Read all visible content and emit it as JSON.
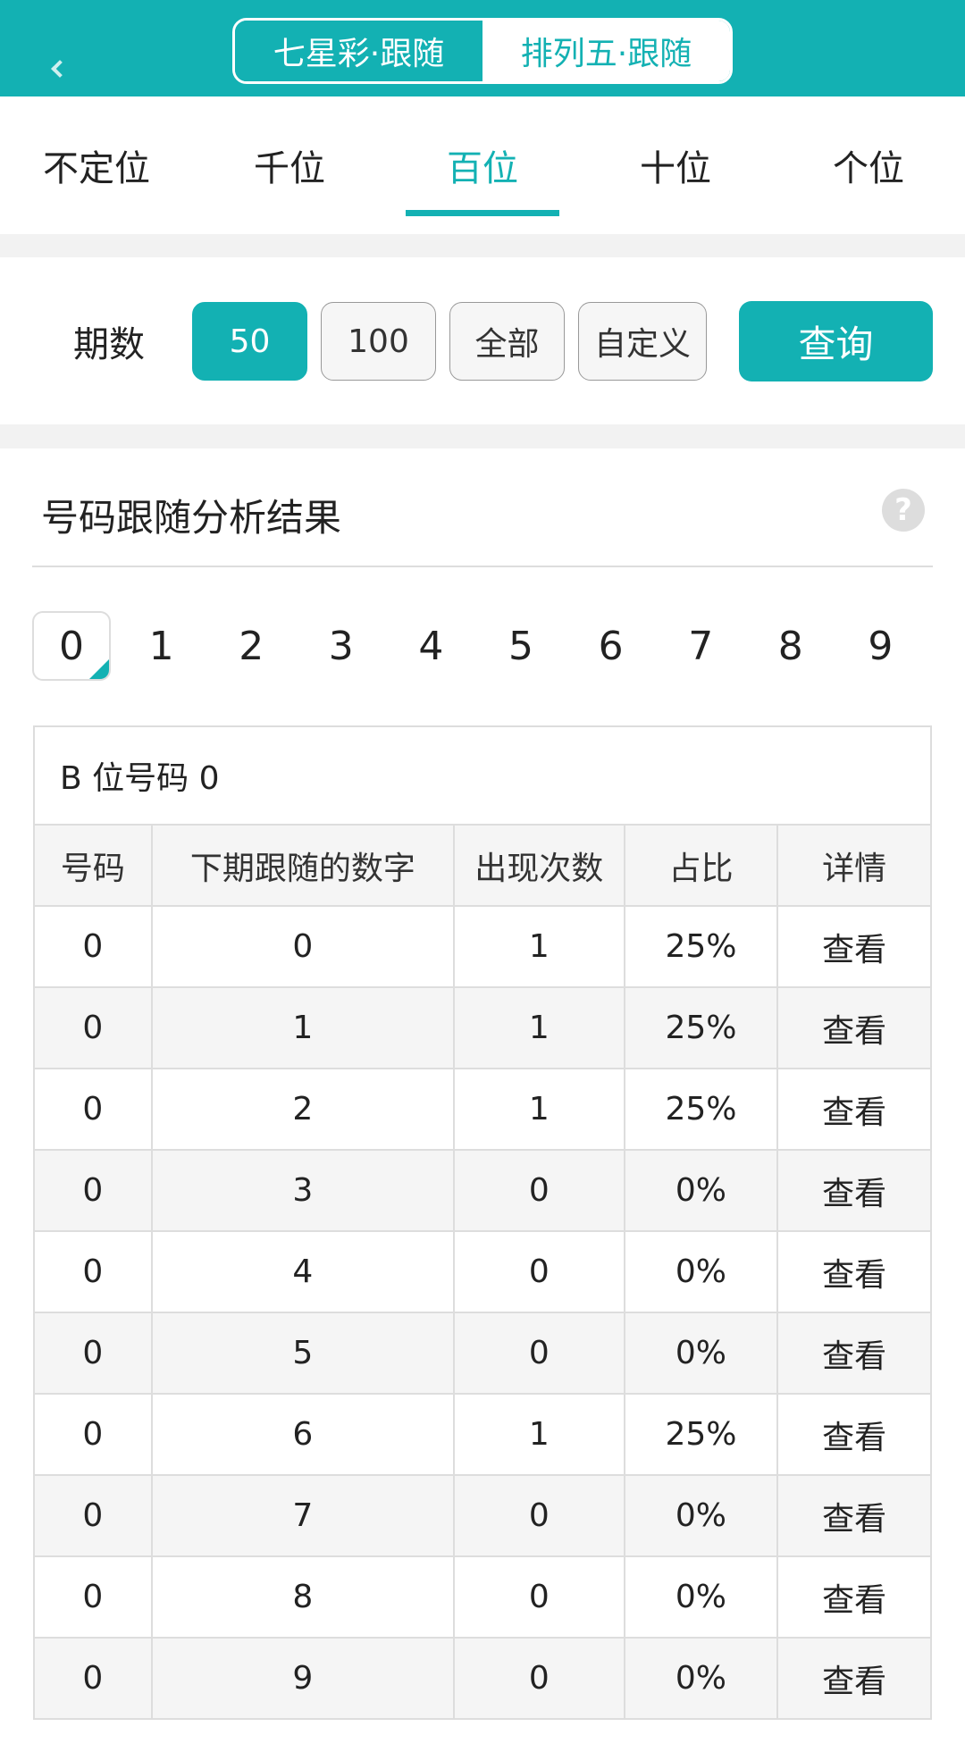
{
  "header": {
    "segments": [
      "七星彩·跟随",
      "排列五·跟随"
    ],
    "active_segment": 0,
    "accent": "#13b1b3"
  },
  "tabs": [
    "不定位",
    "千位",
    "百位",
    "十位",
    "个位"
  ],
  "active_tab": 2,
  "period": {
    "label": "期数",
    "options": [
      "50",
      "100",
      "全部",
      "自定义"
    ],
    "selected": "50",
    "query_label": "查询"
  },
  "result": {
    "title": "号码跟随分析结果",
    "help_icon": "?",
    "digits": [
      "0",
      "1",
      "2",
      "3",
      "4",
      "5",
      "6",
      "7",
      "8",
      "9"
    ],
    "selected_digit": "0"
  },
  "table": {
    "caption": "B 位号码 0",
    "headers": [
      "号码",
      "下期跟随的数字",
      "出现次数",
      "占比",
      "详情"
    ],
    "rows": [
      [
        "0",
        "0",
        "1",
        "25%",
        "查看"
      ],
      [
        "0",
        "1",
        "1",
        "25%",
        "查看"
      ],
      [
        "0",
        "2",
        "1",
        "25%",
        "查看"
      ],
      [
        "0",
        "3",
        "0",
        "0%",
        "查看"
      ],
      [
        "0",
        "4",
        "0",
        "0%",
        "查看"
      ],
      [
        "0",
        "5",
        "0",
        "0%",
        "查看"
      ],
      [
        "0",
        "6",
        "1",
        "25%",
        "查看"
      ],
      [
        "0",
        "7",
        "0",
        "0%",
        "查看"
      ],
      [
        "0",
        "8",
        "0",
        "0%",
        "查看"
      ],
      [
        "0",
        "9",
        "0",
        "0%",
        "查看"
      ]
    ]
  }
}
